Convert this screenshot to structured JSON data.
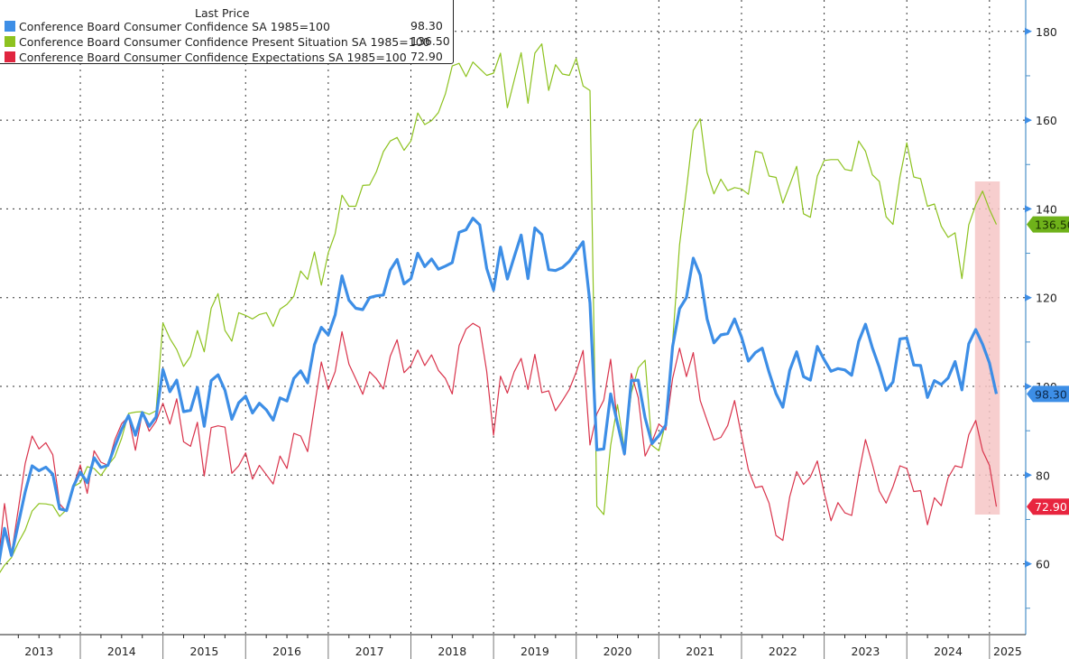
{
  "chart_data": {
    "type": "line",
    "title": "",
    "legend_header": "Last Price",
    "legend_placement": "top-left",
    "xlabel": "",
    "ylabel": "",
    "ylim": [
      43,
      188
    ],
    "y_ticks": [
      60,
      80,
      100,
      120,
      140,
      160,
      180
    ],
    "x_start": "2013-01",
    "x_end": "2025-02",
    "frequency": "monthly",
    "x_tick_labels": [
      "2013",
      "2014",
      "2015",
      "2016",
      "2017",
      "2018",
      "2019",
      "2020",
      "2021",
      "2022",
      "2023",
      "2024",
      "2025"
    ],
    "grid": true,
    "highlight": {
      "from": "2024-11",
      "to": "2025-02",
      "color": "#f6c6c6"
    },
    "series": [
      {
        "name": "Conference Board Consumer Confidence SA 1985=100",
        "last": "98.30",
        "color": "#3d8ee6",
        "label_color": "#3d8ee6",
        "values": [
          58.4,
          68.0,
          61.9,
          69.0,
          76.2,
          82.1,
          81.0,
          81.8,
          80.2,
          72.4,
          72.0,
          77.5,
          80.7,
          78.3,
          83.9,
          81.7,
          82.2,
          86.4,
          90.3,
          93.4,
          89.0,
          94.1,
          91.0,
          93.1,
          103.8,
          98.8,
          101.4,
          94.3,
          94.6,
          99.8,
          91.0,
          101.3,
          102.6,
          99.1,
          92.6,
          96.3,
          97.8,
          94.0,
          96.2,
          94.7,
          92.4,
          97.4,
          96.7,
          101.8,
          103.5,
          100.8,
          109.4,
          113.3,
          111.6,
          116.1,
          124.9,
          119.4,
          117.6,
          117.3,
          120.0,
          120.4,
          120.6,
          126.2,
          128.6,
          123.1,
          124.3,
          130.0,
          127.0,
          128.7,
          126.4,
          127.1,
          127.9,
          134.7,
          135.3,
          137.9,
          136.4,
          126.6,
          121.7,
          131.4,
          124.2,
          129.2,
          134.1,
          124.3,
          135.7,
          134.2,
          126.3,
          126.1,
          126.8,
          128.2,
          130.4,
          132.6,
          118.8,
          85.7,
          85.9,
          98.3,
          91.7,
          84.8,
          101.3,
          101.4,
          92.9,
          87.1,
          88.9,
          91.3,
          109.0,
          117.5,
          120.0,
          128.9,
          125.1,
          115.2,
          109.8,
          111.6,
          111.9,
          115.2,
          111.1,
          105.7,
          107.6,
          108.6,
          103.2,
          98.4,
          95.3,
          103.6,
          107.8,
          102.2,
          101.4,
          109.0,
          106.0,
          103.4,
          104.0,
          103.7,
          102.5,
          110.1,
          114.0,
          108.7,
          104.3,
          99.1,
          101.0,
          110.7,
          110.9,
          104.8,
          104.7,
          97.5,
          101.3,
          100.4,
          101.9,
          105.6,
          99.2,
          109.6,
          112.8,
          109.5,
          105.3,
          98.3
        ]
      },
      {
        "name": "Conference Board Consumer Confidence Present Situation SA 1985=100",
        "last": "136.50",
        "color": "#8dc21f",
        "label_color": "#6fb21a",
        "values": [
          57.3,
          59.7,
          61.4,
          64.8,
          67.6,
          71.9,
          73.6,
          73.5,
          73.2,
          70.7,
          72.2,
          77.4,
          78.3,
          81.9,
          81.5,
          79.9,
          82.2,
          84.1,
          88.3,
          93.9,
          94.2,
          94.3,
          93.7,
          94.5,
          114.3,
          110.8,
          108.3,
          104.5,
          106.8,
          112.6,
          107.8,
          117.6,
          120.9,
          112.6,
          110.2,
          116.6,
          116.0,
          115.2,
          116.2,
          116.6,
          113.5,
          117.4,
          118.5,
          120.3,
          126.0,
          124.1,
          130.3,
          122.8,
          130.1,
          134.4,
          143.1,
          140.6,
          140.6,
          145.3,
          145.4,
          148.4,
          152.9,
          155.3,
          156.1,
          153.2,
          155.3,
          161.6,
          159.0,
          159.9,
          161.7,
          165.9,
          172.2,
          172.8,
          169.8,
          173.1,
          171.6,
          170.1,
          170.6,
          175.1,
          162.8,
          169.0,
          175.2,
          163.8,
          175.1,
          177.2,
          166.7,
          172.5,
          170.4,
          170.1,
          173.9,
          167.7,
          166.7,
          73.0,
          71.1,
          86.7,
          95.9,
          85.8,
          98.5,
          104.2,
          105.9,
          86.7,
          85.5,
          92.0,
          110.0,
          131.9,
          144.3,
          157.7,
          160.3,
          148.2,
          143.4,
          146.7,
          144.1,
          144.8,
          144.5,
          143.3,
          153.0,
          152.6,
          147.4,
          147.1,
          141.3,
          145.4,
          149.6,
          138.9,
          138.1,
          147.4,
          150.9,
          151.1,
          151.1,
          148.9,
          148.6,
          155.3,
          153.0,
          147.7,
          146.2,
          138.2,
          136.5,
          147.2,
          154.9,
          147.2,
          146.8,
          140.6,
          141.1,
          136.1,
          133.6,
          134.6,
          124.3,
          136.4,
          140.9,
          144.0,
          139.9,
          136.5
        ]
      },
      {
        "name": "Conference Board Consumer Confidence Expectations SA 1985=100",
        "last": "72.90",
        "color": "#d9334b",
        "label_color": "#e8253f",
        "values": [
          59.2,
          73.6,
          62.2,
          72.3,
          82.6,
          88.8,
          85.9,
          87.3,
          84.6,
          73.5,
          71.8,
          77.6,
          82.3,
          75.9,
          85.5,
          82.9,
          82.2,
          87.9,
          91.6,
          93.2,
          85.6,
          94.0,
          89.9,
          92.1,
          96.2,
          91.5,
          97.2,
          87.5,
          86.5,
          91.9,
          79.8,
          90.7,
          91.1,
          90.8,
          80.4,
          82.1,
          85.0,
          79.1,
          82.2,
          80.1,
          78.0,
          84.3,
          81.5,
          89.4,
          88.8,
          85.3,
          95.5,
          105.5,
          99.3,
          103.3,
          112.3,
          105.0,
          101.7,
          98.2,
          103.3,
          101.7,
          99.4,
          106.8,
          110.5,
          103.1,
          104.7,
          108.2,
          104.7,
          107.1,
          103.6,
          101.8,
          98.3,
          109.2,
          112.9,
          114.2,
          113.3,
          103.4,
          89.0,
          102.3,
          98.5,
          103.3,
          106.3,
          99.3,
          107.2,
          98.6,
          99.0,
          94.5,
          96.8,
          99.3,
          103.2,
          108.1,
          86.8,
          93.8,
          96.9,
          106.1,
          91.5,
          84.5,
          102.9,
          97.5,
          84.3,
          87.5,
          91.5,
          90.2,
          101.8,
          108.6,
          102.2,
          107.6,
          96.8,
          92.3,
          87.9,
          88.5,
          91.2,
          96.8,
          88.8,
          81.2,
          77.2,
          77.5,
          73.7,
          66.4,
          65.3,
          75.1,
          80.8,
          77.9,
          79.6,
          83.2,
          76.0,
          69.7,
          73.8,
          71.5,
          70.9,
          80.1,
          88.0,
          82.5,
          76.4,
          73.7,
          77.4,
          82.1,
          81.5,
          76.3,
          76.5,
          68.8,
          74.9,
          73.1,
          79.4,
          82.1,
          81.7,
          89.1,
          92.3,
          85.5,
          82.2,
          72.9
        ]
      }
    ]
  }
}
